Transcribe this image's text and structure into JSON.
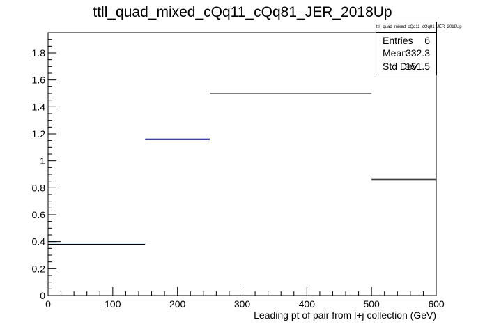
{
  "chart_data": {
    "type": "histogram",
    "title": "ttll_quad_mixed_cQq11_cQq81_JER_2018Up",
    "xlabel": "Leading pt of pair from l+j collection (GeV)",
    "ylabel": "",
    "xlim": [
      0,
      600
    ],
    "ylim": [
      0,
      1.95
    ],
    "x_ticks": [
      "0",
      "100",
      "200",
      "300",
      "400",
      "500",
      "600"
    ],
    "y_ticks": [
      "0",
      "0.2",
      "0.4",
      "0.6",
      "0.8",
      "1",
      "1.2",
      "1.4",
      "1.6",
      "1.8"
    ],
    "x_tick_values": [
      0,
      100,
      200,
      300,
      400,
      500,
      600
    ],
    "y_tick_values": [
      0,
      0.2,
      0.4,
      0.6,
      0.8,
      1,
      1.2,
      1.4,
      1.6,
      1.8
    ],
    "bins": [
      {
        "xlow": 0,
        "xhigh": 150,
        "value": 0.38,
        "color": "#000000"
      },
      {
        "xlow": 0,
        "xhigh": 150,
        "value": 0.39,
        "color": "#1f6f6f"
      },
      {
        "xlow": 0,
        "xhigh": 20,
        "value": 0.4,
        "color": "#000000"
      },
      {
        "xlow": 150,
        "xhigh": 250,
        "value": 1.16,
        "color": "#000080"
      },
      {
        "xlow": 250,
        "xhigh": 500,
        "value": 1.5,
        "color": "#000000"
      },
      {
        "xlow": 500,
        "xhigh": 600,
        "value": 0.86,
        "color": "#000000"
      },
      {
        "xlow": 500,
        "xhigh": 600,
        "value": 0.87,
        "color": "#000000"
      }
    ],
    "stats": {
      "name": "ttll_quad_mixed_cQq11_cQq81_JER_2018Up",
      "rows": [
        {
          "label": "Entries",
          "value": "6"
        },
        {
          "label": "Mean",
          "value": "332.3"
        },
        {
          "label": "Std Dev",
          "value": "151.5"
        }
      ]
    },
    "legend_position": "top-right",
    "grid": false
  }
}
